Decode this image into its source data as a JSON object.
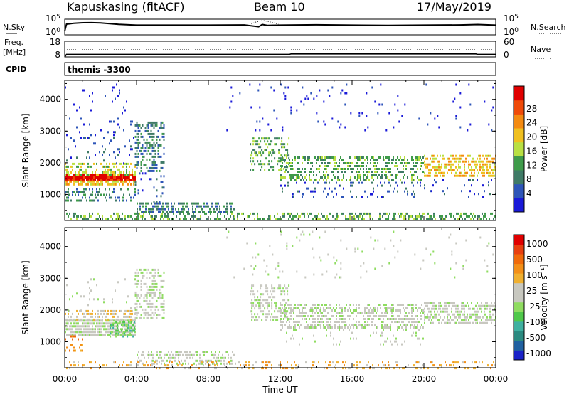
{
  "header": {
    "radar": "Kapuskasing (fitACF)",
    "beam": "Beam 10",
    "date": "17/May/2019"
  },
  "chart_data": [
    {
      "type": "line",
      "panel": "noise",
      "left_label": "N.Sky",
      "right_label": "N.Search",
      "left_ticks": [
        "10^5",
        "10^0"
      ],
      "right_ticks": [
        "10^5",
        "10^0"
      ],
      "scale": "log",
      "ylim": [
        1,
        100000
      ],
      "series": [
        {
          "name": "N.Sky",
          "style": "solid",
          "x_hours": [
            0,
            0.1,
            0.5,
            1,
            1.5,
            2,
            3,
            4,
            6,
            8,
            10,
            10.8,
            11,
            11.3,
            12,
            14,
            16,
            18,
            20,
            22,
            23,
            24
          ],
          "log10_values": [
            1.2,
            3.4,
            3.7,
            3.85,
            3.9,
            3.8,
            3.35,
            3.1,
            3.1,
            3.1,
            3.15,
            2.6,
            3.3,
            3.0,
            3.1,
            3.2,
            3.1,
            3.0,
            3.1,
            3.15,
            3.3,
            3.1
          ]
        },
        {
          "name": "N.Search",
          "style": "dotted",
          "x_hours": [
            10.4,
            10.7,
            11.0,
            11.3,
            11.6,
            11.9
          ],
          "log10_values": [
            3.5,
            4.2,
            4.6,
            4.3,
            3.9,
            3.4
          ]
        }
      ]
    },
    {
      "type": "line",
      "panel": "frequency",
      "left_label_top": "Freq.",
      "left_label_bottom": "[MHz]",
      "right_label": "Nave",
      "left_ticks": [
        "18",
        "8"
      ],
      "right_ticks": [
        "60",
        "0"
      ],
      "series": [
        {
          "name": "Freq.",
          "style": "solid",
          "x_hours": [
            0,
            0.1,
            12.5,
            12.6,
            22.9,
            23.0,
            24
          ],
          "values": [
            8.0,
            9.6,
            9.6,
            9.9,
            9.9,
            9.6,
            9.6
          ]
        },
        {
          "name": "Nave",
          "style": "dotted",
          "x_hours": [
            0,
            24
          ],
          "values": [
            27,
            27
          ]
        }
      ]
    },
    {
      "type": "table",
      "panel": "cpid",
      "label": "CPID",
      "segments": [
        {
          "start_hour": 0,
          "end_hour": 24,
          "text": "themis -3300"
        }
      ]
    },
    {
      "type": "heatmap",
      "panel": "power",
      "ylabel": "Slant Range [km]",
      "ylim": [
        180,
        4600
      ],
      "yticks": [
        1000,
        2000,
        3000,
        4000
      ],
      "colorbar_label": "Power [dB]",
      "colorbar_ticks": [
        "4",
        "8",
        "12",
        "16",
        "20",
        "24",
        "28"
      ],
      "colors": [
        "#1a1ad8",
        "#2e55b8",
        "#3f7a66",
        "#3f9b4a",
        "#b9e043",
        "#f0c020",
        "#f48a10",
        "#ef4a08",
        "#e00000"
      ],
      "blobs": [
        {
          "t": [
            0.0,
            3.9
          ],
          "r": [
            1420,
            1660
          ],
          "lvl": 8,
          "d": 0.95
        },
        {
          "t": [
            0.0,
            3.9
          ],
          "r": [
            1300,
            1440
          ],
          "lvl": 5,
          "d": 0.6
        },
        {
          "t": [
            0.0,
            3.9
          ],
          "r": [
            1640,
            2000
          ],
          "lvl": 4,
          "d": 0.5
        },
        {
          "t": [
            0.0,
            3.9
          ],
          "r": [
            820,
            1200
          ],
          "lvl": 2,
          "d": 0.3
        },
        {
          "t": [
            0.0,
            3.9
          ],
          "r": [
            2000,
            3000
          ],
          "lvl": 1,
          "d": 0.07
        },
        {
          "t": [
            0.0,
            3.9
          ],
          "r": [
            3000,
            4500
          ],
          "lvl": 0,
          "d": 0.04
        },
        {
          "t": [
            3.9,
            5.5
          ],
          "r": [
            1700,
            3300
          ],
          "lvl": 2,
          "d": 0.4
        },
        {
          "t": [
            3.9,
            5.5
          ],
          "r": [
            800,
            1700
          ],
          "lvl": 1,
          "d": 0.12
        },
        {
          "t": [
            4.0,
            9.5
          ],
          "r": [
            420,
            750
          ],
          "lvl": 2,
          "d": 0.55
        },
        {
          "t": [
            0.0,
            24.0
          ],
          "r": [
            180,
            430
          ],
          "lvl": 3,
          "d": 0.4
        },
        {
          "t": [
            10.3,
            12.5
          ],
          "r": [
            1800,
            2800
          ],
          "lvl": 3,
          "d": 0.4
        },
        {
          "t": [
            12.0,
            20.0
          ],
          "r": [
            1400,
            2200
          ],
          "lvl": 3,
          "d": 0.45
        },
        {
          "t": [
            12.0,
            20.0
          ],
          "r": [
            900,
            1400
          ],
          "lvl": 1,
          "d": 0.15
        },
        {
          "t": [
            20.0,
            24.0
          ],
          "r": [
            1550,
            2250
          ],
          "lvl": 5,
          "d": 0.55
        },
        {
          "t": [
            20.0,
            24.0
          ],
          "r": [
            900,
            1500
          ],
          "lvl": 1,
          "d": 0.08
        },
        {
          "t": [
            9.0,
            24.0
          ],
          "r": [
            3000,
            4500
          ],
          "lvl": 0,
          "d": 0.03
        }
      ]
    },
    {
      "type": "heatmap",
      "panel": "velocity",
      "ylabel": "Slant Range [km]",
      "ylim": [
        180,
        4600
      ],
      "yticks": [
        1000,
        2000,
        3000,
        4000
      ],
      "xlabel": "Time UT",
      "xticks": [
        "00:00",
        "04:00",
        "08:00",
        "12:00",
        "16:00",
        "20:00",
        "00:00"
      ],
      "colorbar_label": "Velocity [m s⁻¹]",
      "colorbar_ticks": [
        "1000",
        "500",
        "100",
        "25",
        "-25",
        "-100",
        "-500",
        "-1000"
      ],
      "colors": [
        "#1a22c8",
        "#2060a0",
        "#2b8a80",
        "#3fb0a0",
        "#4fc84a",
        "#8fdc60",
        "#c8c8c0",
        "#c8c8c0",
        "#f0b030",
        "#f38f18",
        "#f06a0a",
        "#e84010",
        "#e00000"
      ],
      "blobs": [
        {
          "t": [
            0.0,
            3.9
          ],
          "r": [
            1250,
            1700
          ],
          "lvl": 6,
          "d": 0.9
        },
        {
          "t": [
            2.5,
            3.9
          ],
          "r": [
            1150,
            1650
          ],
          "lvl": 4,
          "d": 0.45
        },
        {
          "t": [
            0.0,
            3.9
          ],
          "r": [
            1700,
            2000
          ],
          "lvl": 7,
          "d": 0.45
        },
        {
          "t": [
            0.0,
            1.0
          ],
          "r": [
            700,
            1200
          ],
          "lvl": 9,
          "d": 0.35
        },
        {
          "t": [
            3.9,
            5.5
          ],
          "r": [
            1700,
            3300
          ],
          "lvl": 6,
          "d": 0.4
        },
        {
          "t": [
            0.0,
            3.9
          ],
          "r": [
            2000,
            3000
          ],
          "lvl": 6,
          "d": 0.06
        },
        {
          "t": [
            4.0,
            9.5
          ],
          "r": [
            300,
            700
          ],
          "lvl": 6,
          "d": 0.5
        },
        {
          "t": [
            0.0,
            24.0
          ],
          "r": [
            180,
            380
          ],
          "lvl": 8,
          "d": 0.25
        },
        {
          "t": [
            10.3,
            12.5
          ],
          "r": [
            1700,
            2800
          ],
          "lvl": 6,
          "d": 0.45
        },
        {
          "t": [
            12.0,
            20.0
          ],
          "r": [
            1400,
            2200
          ],
          "lvl": 6,
          "d": 0.5
        },
        {
          "t": [
            20.0,
            24.0
          ],
          "r": [
            1600,
            2250
          ],
          "lvl": 6,
          "d": 0.6
        },
        {
          "t": [
            12.0,
            20.0
          ],
          "r": [
            900,
            1400
          ],
          "lvl": 6,
          "d": 0.1
        },
        {
          "t": [
            9.0,
            24.0
          ],
          "r": [
            3000,
            4500
          ],
          "lvl": 6,
          "d": 0.03
        }
      ]
    }
  ]
}
